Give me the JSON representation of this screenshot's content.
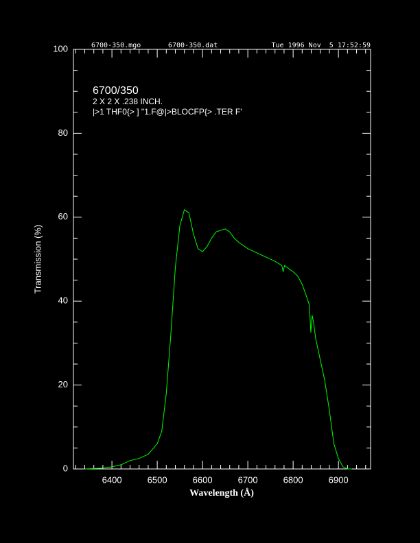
{
  "chart_data": {
    "type": "line",
    "header": [
      "6700-350.mgo",
      "6700-350.dat",
      "Tue 1996 Nov  5 17:52:59"
    ],
    "title": "6700/350",
    "annotations": [
      "2 X 2 X .238 INCH.",
      "|>1 THF0{> ] \"1.F@|>BLOCFP{> .TER F'"
    ],
    "xlabel": "Wavelength (Å)",
    "ylabel": "Transmission (%)",
    "xlim": [
      6315,
      6971
    ],
    "ylim": [
      0,
      100
    ],
    "xticks": [
      6400,
      6500,
      6600,
      6700,
      6800,
      6900
    ],
    "yticks": [
      0,
      20,
      40,
      60,
      80,
      100
    ],
    "xticks_minor": [
      6320,
      6340,
      6360,
      6380,
      6420,
      6440,
      6460,
      6480,
      6520,
      6540,
      6560,
      6580,
      6620,
      6640,
      6660,
      6680,
      6720,
      6740,
      6760,
      6780,
      6820,
      6840,
      6860,
      6880,
      6920,
      6940,
      6960
    ],
    "yticks_minor": [
      5,
      10,
      15,
      25,
      30,
      35,
      45,
      50,
      55,
      65,
      70,
      75,
      85,
      90,
      95
    ],
    "color": "#00ff00",
    "x": [
      6340,
      6380,
      6400,
      6420,
      6440,
      6460,
      6480,
      6500,
      6510,
      6520,
      6530,
      6540,
      6550,
      6560,
      6570,
      6580,
      6590,
      6600,
      6610,
      6620,
      6630,
      6650,
      6660,
      6670,
      6680,
      6700,
      6720,
      6740,
      6760,
      6775,
      6778,
      6781,
      6800,
      6810,
      6820,
      6830,
      6836,
      6839,
      6842,
      6845,
      6850,
      6860,
      6870,
      6880,
      6890,
      6900,
      6910,
      6920,
      6930
    ],
    "values": [
      0,
      0.2,
      0.5,
      1,
      2,
      2.5,
      3.5,
      6,
      9,
      18,
      32,
      48,
      58,
      61.8,
      61,
      56,
      52.5,
      51.8,
      53,
      55,
      56.5,
      57.2,
      56.5,
      55,
      54,
      52.5,
      51.5,
      50.5,
      49.5,
      48.5,
      47,
      48.5,
      47,
      46,
      44,
      41,
      39,
      32.5,
      36.6,
      35,
      31,
      26,
      21,
      14,
      6,
      2.5,
      0.5,
      0,
      0
    ]
  }
}
